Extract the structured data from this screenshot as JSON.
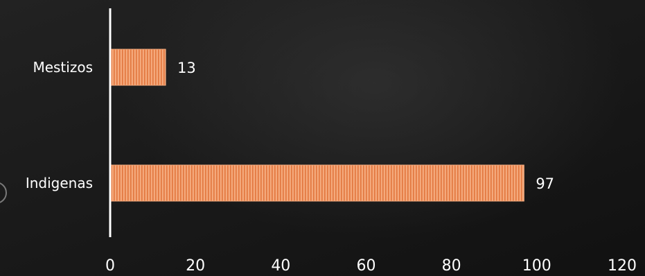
{
  "chart_data": {
    "type": "bar",
    "orientation": "horizontal",
    "categories": [
      "Mestizos",
      "Indigenas"
    ],
    "values": [
      13,
      97
    ],
    "data_labels": [
      "13",
      "97"
    ],
    "xlim": [
      0,
      120
    ],
    "x_ticks": [
      "0",
      "20",
      "40",
      "60",
      "80",
      "100",
      "120"
    ],
    "grid": false,
    "legend": "none",
    "colors": {
      "bar_fill": "#f4a97c",
      "bar_stripe": "#e2763d",
      "axis": "#ffffff",
      "text": "#ffffff",
      "background": "#1a1a1a"
    }
  }
}
